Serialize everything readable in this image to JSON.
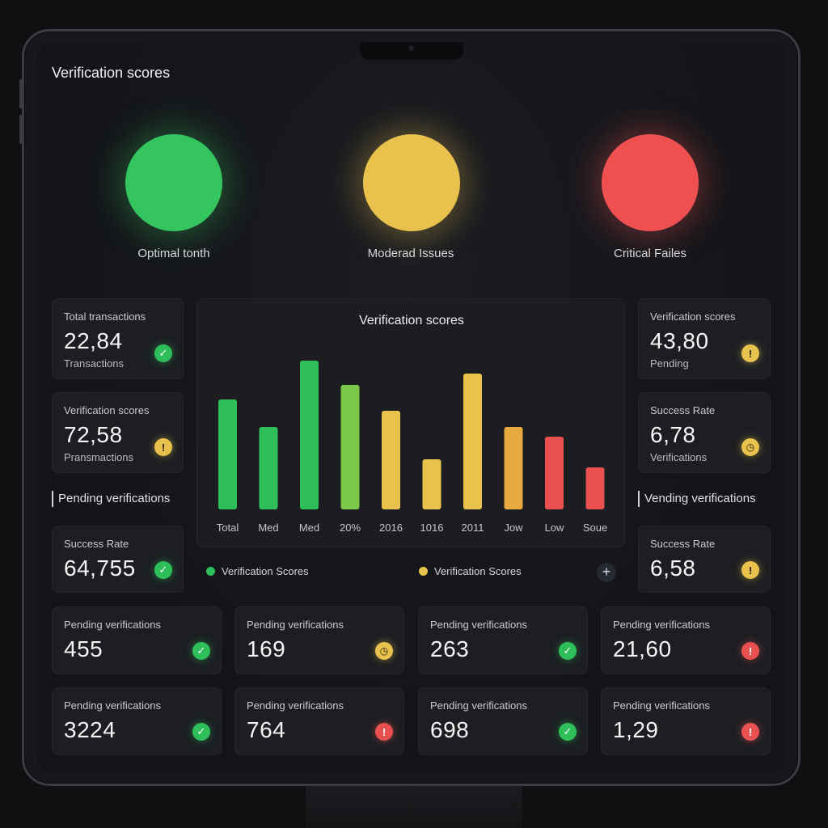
{
  "header": {
    "title": "Verification scores"
  },
  "status_lights": [
    {
      "label": "Optimal tonth",
      "color": "#35c55f"
    },
    {
      "label": "Moderad Issues",
      "color": "#e8c24d"
    },
    {
      "label": "Critical Failes",
      "color": "#ee5150"
    }
  ],
  "left_cards": [
    {
      "label": "Total transactions",
      "value": "22,84",
      "sub": "Transactions",
      "status": "check-icon"
    },
    {
      "label": "Verification scores",
      "value": "72,58",
      "sub": "Pransmactions",
      "status": "warning-icon"
    }
  ],
  "left_section": {
    "label": "Pending verifications"
  },
  "left_bottom_card": {
    "label": "Success Rate",
    "value": "64,755",
    "status": "check-icon"
  },
  "right_cards": [
    {
      "label": "Verification scores",
      "value": "43,80",
      "sub": "Pending",
      "status": "warning-icon"
    },
    {
      "label": "Success Rate",
      "value": "6,78",
      "sub": "Verifications",
      "status": "clock-icon"
    }
  ],
  "right_section": {
    "label": "Vending verifications"
  },
  "right_bottom_card": {
    "label": "Success Rate",
    "value": "6,58",
    "status": "warning-icon"
  },
  "grid_cards": [
    {
      "label": "Pending verifications",
      "value": "455",
      "status": "check-icon"
    },
    {
      "label": "Pending verifications",
      "value": "169",
      "status": "clock-icon"
    },
    {
      "label": "Pending verifications",
      "value": "263",
      "status": "check-icon"
    },
    {
      "label": "Pending verifications",
      "value": "21,60",
      "status": "alert-icon"
    },
    {
      "label": "Pending verifications",
      "value": "3224",
      "status": "check-icon"
    },
    {
      "label": "Pending verifications",
      "value": "764",
      "status": "alert-icon"
    },
    {
      "label": "Pending verifications",
      "value": "698",
      "status": "check-icon"
    },
    {
      "label": "Pending verifications",
      "value": "1,29",
      "status": "alert-icon"
    }
  ],
  "legend": [
    {
      "label": "Verification Scores",
      "color": "#2fbf5a"
    },
    {
      "label": "Verification Scores",
      "color": "#e8c24d"
    }
  ],
  "plus_label": "+",
  "chart_data": {
    "type": "bar",
    "title": "Verification scores",
    "categories": [
      "Total",
      "Med",
      "Med",
      "20%",
      "2016",
      "1016",
      "2011",
      "Jow",
      "Low",
      "Soue"
    ],
    "values": [
      68,
      51,
      92,
      77,
      61,
      31,
      84,
      51,
      45,
      26
    ],
    "colors": [
      "#2fbf5a",
      "#2fbf5a",
      "#2fbf5a",
      "#7cc94a",
      "#e8c24d",
      "#e8c24d",
      "#e8c24d",
      "#e8a940",
      "#e8514f",
      "#e8514f"
    ],
    "ylim": [
      0,
      100
    ],
    "grid": false
  },
  "icons": {
    "check-icon": "✓",
    "warning-icon": "!",
    "clock-icon": "◷",
    "alert-icon": "!"
  }
}
